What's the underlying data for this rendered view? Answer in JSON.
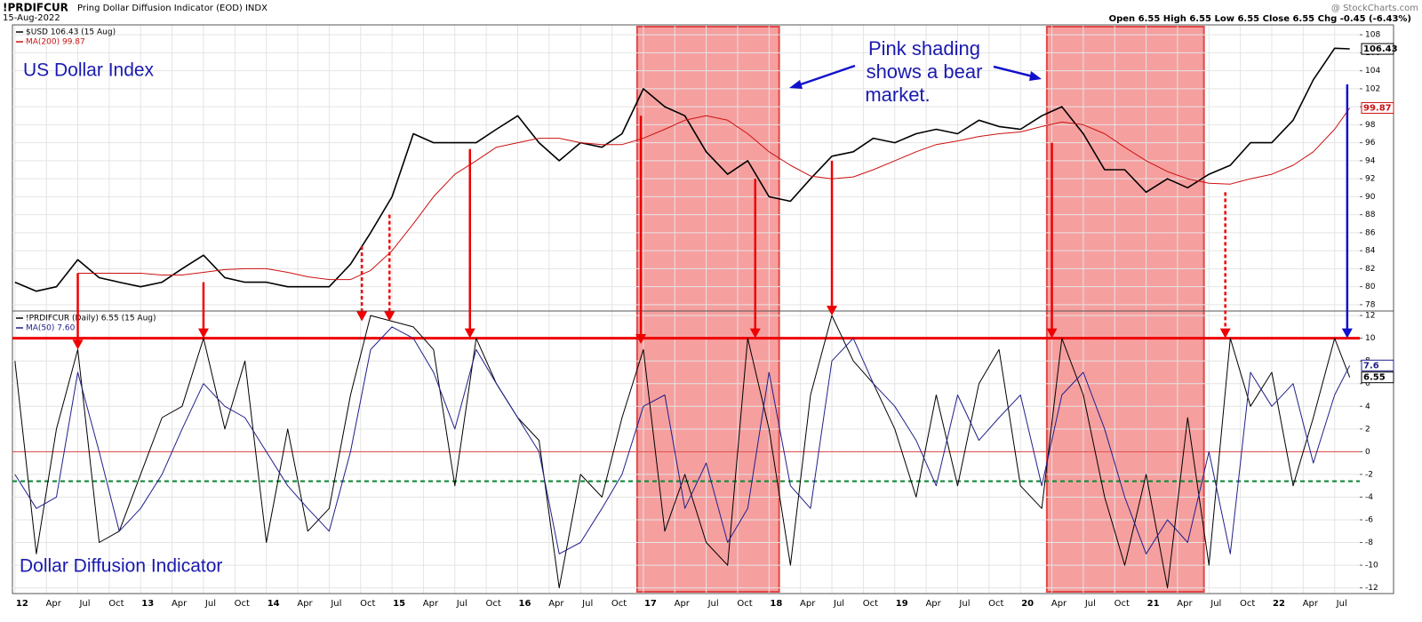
{
  "header": {
    "symbol": "!PRDIFCUR",
    "name": "Pring Dollar Diffusion Indicator (EOD) INDX",
    "date": "15-Aug-2022",
    "source": "@ StockCharts.com",
    "quote": "Open 6.55 High 6.55 Low 6.55 Close 6.55 Chg -0.45 (-6.43%)"
  },
  "bear_markets": [
    [
      16.95,
      18.08
    ],
    [
      20.21,
      21.46
    ]
  ],
  "arrows": [
    {
      "x": 12.5,
      "from": 81.5,
      "to": 9,
      "color": "#ee0000",
      "dashed": false
    },
    {
      "x": 13.5,
      "from": 80.5,
      "to": 10,
      "color": "#ee0000",
      "dashed": false
    },
    {
      "x": 14.76,
      "from": 84.5,
      "to": 11.5,
      "color": "#ee0000",
      "dashed": true
    },
    {
      "x": 14.98,
      "from": 88,
      "to": 11.5,
      "color": "#ee0000",
      "dashed": true
    },
    {
      "x": 15.62,
      "from": 95.3,
      "to": 10,
      "color": "#ee0000",
      "dashed": false
    },
    {
      "x": 16.98,
      "from": 99,
      "to": 9.5,
      "color": "#ee0000",
      "dashed": false
    },
    {
      "x": 17.89,
      "from": 92,
      "to": 10,
      "color": "#ee0000",
      "dashed": false
    },
    {
      "x": 18.5,
      "from": 94,
      "to": 12,
      "color": "#ee0000",
      "dashed": false
    },
    {
      "x": 20.25,
      "from": 96,
      "to": 10,
      "color": "#ee0000",
      "dashed": false
    },
    {
      "x": 21.63,
      "from": 90.5,
      "to": 10,
      "color": "#ee0000",
      "dashed": true
    },
    {
      "x": 22.6,
      "from": 102.5,
      "to": 10,
      "color": "#1010cc",
      "dashed": false
    }
  ],
  "chart_data": [
    {
      "type": "line",
      "label": "US Dollar Index",
      "note": [
        "Pink shading",
        "shows a bear",
        "market."
      ],
      "xlim": [
        11.98,
        22.7
      ],
      "ylim": [
        77.3,
        109.1
      ],
      "yticks": [
        78,
        80,
        82,
        84,
        86,
        88,
        90,
        92,
        94,
        96,
        98,
        100,
        102,
        104,
        106,
        108
      ],
      "grid": true,
      "x": [
        12,
        12.17,
        12.33,
        12.5,
        12.67,
        12.83,
        13,
        13.17,
        13.33,
        13.5,
        13.67,
        13.83,
        14,
        14.17,
        14.33,
        14.5,
        14.67,
        14.83,
        15,
        15.17,
        15.33,
        15.5,
        15.67,
        15.83,
        16,
        16.17,
        16.33,
        16.5,
        16.67,
        16.83,
        17,
        17.17,
        17.33,
        17.5,
        17.67,
        17.83,
        18,
        18.17,
        18.33,
        18.5,
        18.67,
        18.83,
        19,
        19.17,
        19.33,
        19.5,
        19.67,
        19.83,
        20,
        20.17,
        20.33,
        20.5,
        20.67,
        20.83,
        21,
        21.17,
        21.33,
        21.5,
        21.67,
        21.83,
        22,
        22.17,
        22.33,
        22.5,
        22.62
      ],
      "series": [
        {
          "name": "$USD 106.43 (15 Aug)",
          "color": "#000000",
          "width": 1.6,
          "values": [
            80.5,
            79.5,
            80,
            83,
            81,
            80.5,
            80,
            80.5,
            82,
            83.5,
            81,
            80.5,
            80.5,
            80,
            80,
            80,
            82.5,
            86,
            90,
            97,
            96,
            96,
            96,
            97.5,
            99,
            96,
            94,
            96,
            95.5,
            97,
            102,
            100,
            99,
            95,
            92.5,
            94,
            90,
            89.5,
            92,
            94.5,
            95,
            96.5,
            96,
            97,
            97.5,
            97,
            98.5,
            97.8,
            97.5,
            99,
            100,
            97,
            93,
            93,
            90.5,
            92,
            91,
            92.5,
            93.5,
            96,
            96,
            98.5,
            103,
            106.5,
            106.43
          ]
        },
        {
          "name": "MA(200) 99.87",
          "color": "#cc1111",
          "width": 1,
          "values": [
            null,
            null,
            null,
            81.5,
            81.5,
            81.5,
            81.5,
            81.3,
            81.3,
            81.6,
            81.9,
            82,
            82,
            81.6,
            81.1,
            80.8,
            80.8,
            81.8,
            84,
            87,
            90,
            92.5,
            94,
            95.5,
            96,
            96.5,
            96.5,
            96,
            95.8,
            95.8,
            96.5,
            97.5,
            98.5,
            99,
            98.5,
            97,
            95,
            93.5,
            92.3,
            92,
            92.2,
            93,
            94,
            95,
            95.8,
            96.2,
            96.7,
            97,
            97.2,
            97.8,
            98.3,
            98,
            97,
            95.5,
            94,
            92.8,
            92,
            91.5,
            91.4,
            92,
            92.5,
            93.5,
            95,
            97.5,
            99.87
          ]
        }
      ]
    },
    {
      "type": "line",
      "label": "Dollar Diffusion Indicator",
      "xlim": [
        11.98,
        22.7
      ],
      "ylim": [
        -12.5,
        12.4
      ],
      "yticks": [
        -12,
        -10,
        -8,
        -6,
        -4,
        -2,
        0,
        2,
        4,
        6,
        8,
        10,
        12
      ],
      "grid": true,
      "xticks": [
        12,
        {
          "value": 12.25,
          "label": "Apr"
        },
        {
          "value": 12.5,
          "label": "Jul"
        },
        {
          "value": 12.75,
          "label": "Oct"
        },
        13,
        {
          "value": 13.25,
          "label": "Apr"
        },
        {
          "value": 13.5,
          "label": "Jul"
        },
        {
          "value": 13.75,
          "label": "Oct"
        },
        14,
        {
          "value": 14.25,
          "label": "Apr"
        },
        {
          "value": 14.5,
          "label": "Jul"
        },
        {
          "value": 14.75,
          "label": "Oct"
        },
        15,
        {
          "value": 15.25,
          "label": "Apr"
        },
        {
          "value": 15.5,
          "label": "Jul"
        },
        {
          "value": 15.75,
          "label": "Oct"
        },
        16,
        {
          "value": 16.25,
          "label": "Apr"
        },
        {
          "value": 16.5,
          "label": "Jul"
        },
        {
          "value": 16.75,
          "label": "Oct"
        },
        17,
        {
          "value": 17.25,
          "label": "Apr"
        },
        {
          "value": 17.5,
          "label": "Jul"
        },
        {
          "value": 17.75,
          "label": "Oct"
        },
        18,
        {
          "value": 18.25,
          "label": "Apr"
        },
        {
          "value": 18.5,
          "label": "Jul"
        },
        {
          "value": 18.75,
          "label": "Oct"
        },
        19,
        {
          "value": 19.25,
          "label": "Apr"
        },
        {
          "value": 19.5,
          "label": "Jul"
        },
        {
          "value": 19.75,
          "label": "Oct"
        },
        20,
        {
          "value": 20.25,
          "label": "Apr"
        },
        {
          "value": 20.5,
          "label": "Jul"
        },
        {
          "value": 20.75,
          "label": "Oct"
        },
        21,
        {
          "value": 21.25,
          "label": "Apr"
        },
        {
          "value": 21.5,
          "label": "Jul"
        },
        {
          "value": 21.75,
          "label": "Oct"
        },
        22,
        {
          "value": 22.25,
          "label": "Apr"
        },
        {
          "value": 22.5,
          "label": "Jul"
        }
      ],
      "hlines": [
        {
          "value": 10,
          "color": "#ee0000",
          "width": 3,
          "dashed": false
        },
        {
          "value": 0,
          "color": "#dd4444",
          "width": 1,
          "dashed": false
        },
        {
          "value": -2.6,
          "color": "#13893a",
          "width": 2.2,
          "dashed": true
        }
      ],
      "x": [
        12,
        12.17,
        12.33,
        12.5,
        12.67,
        12.83,
        13,
        13.17,
        13.33,
        13.5,
        13.67,
        13.83,
        14,
        14.17,
        14.33,
        14.5,
        14.67,
        14.83,
        15,
        15.17,
        15.33,
        15.5,
        15.67,
        15.83,
        16,
        16.17,
        16.33,
        16.5,
        16.67,
        16.83,
        17,
        17.17,
        17.33,
        17.5,
        17.67,
        17.83,
        18,
        18.17,
        18.33,
        18.5,
        18.67,
        18.83,
        19,
        19.17,
        19.33,
        19.5,
        19.67,
        19.83,
        20,
        20.17,
        20.33,
        20.5,
        20.67,
        20.83,
        21,
        21.17,
        21.33,
        21.5,
        21.67,
        21.83,
        22,
        22.17,
        22.33,
        22.5,
        22.62
      ],
      "series": [
        {
          "name": "!PRDIFCUR (Daily) 6.55 (15 Aug)",
          "color": "#000000",
          "width": 1,
          "values": [
            8,
            -9,
            2,
            9,
            -8,
            -7,
            -2,
            3,
            4,
            10,
            2,
            8,
            -8,
            2,
            -7,
            -5,
            5,
            12,
            11.5,
            11,
            9,
            -3,
            10,
            6,
            3,
            1,
            -12,
            -2,
            -4,
            3,
            9,
            -7,
            -2,
            -8,
            -10,
            10,
            2,
            -10,
            5,
            12,
            8,
            6,
            2,
            -4,
            5,
            -3,
            6,
            9,
            -3,
            -5,
            10,
            5,
            -4,
            -10,
            -2,
            -12,
            3,
            -10,
            10,
            4,
            7,
            -3,
            3,
            10,
            6.55
          ]
        },
        {
          "name": "MA(50) 7.60",
          "color": "#20208a",
          "width": 1,
          "values": [
            -2,
            -5,
            -4,
            7,
            0,
            -7,
            -5,
            -2,
            2,
            6,
            4,
            3,
            0,
            -3,
            -5,
            -7,
            0,
            9,
            11,
            10,
            7,
            2,
            9,
            6,
            3,
            0,
            -9,
            -8,
            -5,
            -2,
            4,
            5,
            -5,
            -1,
            -8,
            -5,
            7,
            -3,
            -5,
            8,
            10,
            6,
            4,
            1,
            -3,
            5,
            1,
            3,
            5,
            -3,
            5,
            7,
            2,
            -4,
            -9,
            -6,
            -8,
            0,
            -9,
            7,
            4,
            6,
            -1,
            5,
            7.6
          ]
        }
      ]
    }
  ]
}
